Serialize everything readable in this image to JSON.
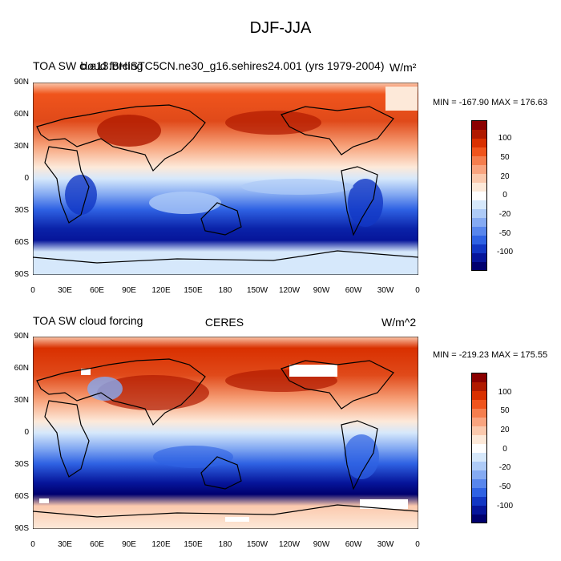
{
  "title": "DJF-JJA",
  "panels": [
    {
      "left_label": "TOA SW cloud forcing",
      "center_label": "b.e13.BHISTC5CN.ne30_g16.sehires24.001 (yrs 1979-2004)",
      "right_label": "W/m²",
      "stats": "MIN = -167.90  MAX = 176.63"
    },
    {
      "left_label": "TOA SW cloud forcing",
      "center_label": "CERES",
      "right_label": "W/m^2",
      "stats": "MIN = -219.23  MAX = 175.55"
    }
  ],
  "lat_labels": [
    "90N",
    "60N",
    "30N",
    "0",
    "30S",
    "60S",
    "90S"
  ],
  "lon_labels": [
    "0",
    "30E",
    "60E",
    "90E",
    "120E",
    "150E",
    "180",
    "150W",
    "120W",
    "90W",
    "60W",
    "30W",
    "0"
  ],
  "colorbar": {
    "labels": [
      "100",
      "50",
      "20",
      "0",
      "-20",
      "-50",
      "-100"
    ],
    "colors": [
      "#8b0000",
      "#b01a00",
      "#d93000",
      "#f0541c",
      "#f57e4e",
      "#f9a47f",
      "#fbc9ad",
      "#fde9d9",
      "#ffffff",
      "#d6e8fb",
      "#aecbf7",
      "#85aaf2",
      "#5886ec",
      "#2f62e3",
      "#1237c4",
      "#06159a",
      "#00006e"
    ]
  }
}
